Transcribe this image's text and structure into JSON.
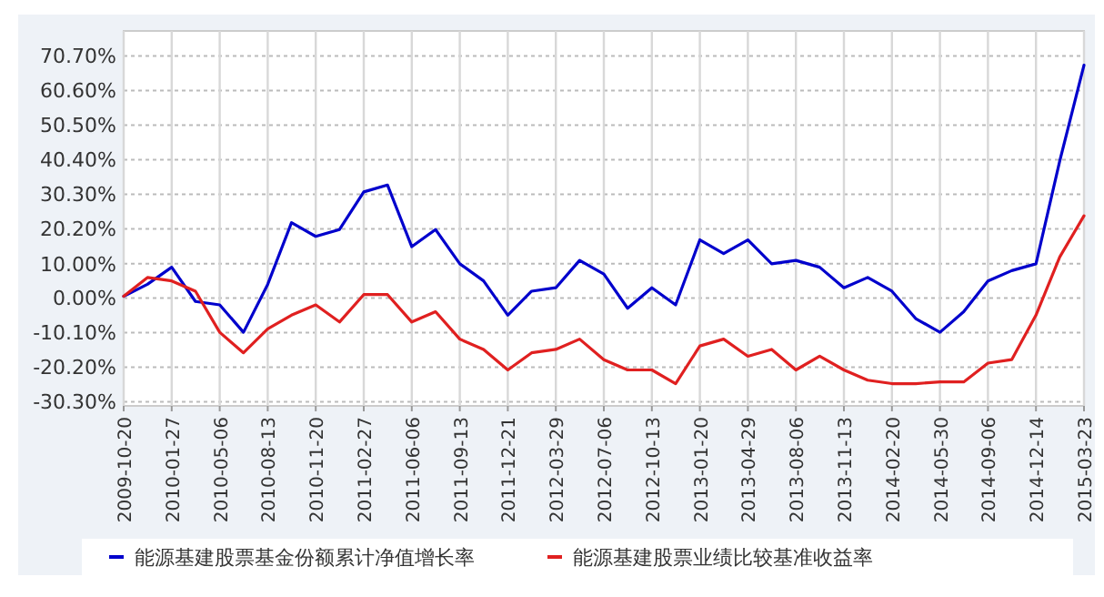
{
  "chart_data": {
    "type": "line",
    "x": [
      "2009-10-20",
      "2009-12-08",
      "2010-01-27",
      "2010-03-17",
      "2010-05-06",
      "2010-06-24",
      "2010-08-13",
      "2010-10-01",
      "2010-11-20",
      "2011-01-08",
      "2011-02-27",
      "2011-04-17",
      "2011-06-06",
      "2011-07-25",
      "2011-09-13",
      "2011-11-01",
      "2011-12-21",
      "2012-02-08",
      "2012-03-29",
      "2012-05-17",
      "2012-07-06",
      "2012-08-24",
      "2012-10-13",
      "2012-12-01",
      "2013-01-20",
      "2013-03-10",
      "2013-04-29",
      "2013-06-17",
      "2013-08-06",
      "2013-09-24",
      "2013-11-13",
      "2014-01-01",
      "2014-02-20",
      "2014-04-10",
      "2014-05-30",
      "2014-07-18",
      "2014-09-06",
      "2014-10-25",
      "2014-12-14",
      "2015-02-01",
      "2015-03-23"
    ],
    "series": [
      {
        "name": "能源基建股票基金份额累计净值增长率",
        "color": "#0000cc",
        "values": [
          0.5,
          4,
          9,
          -1,
          -2,
          -10,
          4,
          22,
          18,
          20,
          31,
          33,
          15,
          20,
          10,
          5,
          -5,
          2,
          3,
          11,
          7,
          -3,
          3,
          -2,
          17,
          13,
          17,
          10,
          11,
          9,
          3,
          6,
          2,
          -6,
          -10,
          -4,
          5,
          8,
          10,
          40,
          68
        ]
      },
      {
        "name": "能源基建股票业绩比较基准收益率",
        "color": "#e02020",
        "values": [
          0.5,
          6,
          5,
          2,
          -10,
          -16,
          -9,
          -5,
          -2,
          -7,
          1,
          1,
          -7,
          -4,
          -12,
          -15,
          -21,
          -16,
          -15,
          -12,
          -18,
          -21,
          -21,
          -25,
          -14,
          -12,
          -17,
          -15,
          -21,
          -17,
          -21,
          -24,
          -25,
          -25,
          -24.5,
          -24.5,
          -19,
          -18,
          -5,
          12,
          24
        ]
      }
    ],
    "xlim": [
      "2009-10-20",
      "2015-03-23"
    ],
    "xticks": [
      "2009-10-20",
      "2010-01-27",
      "2010-05-06",
      "2010-08-13",
      "2010-11-20",
      "2011-02-27",
      "2011-06-06",
      "2011-09-13",
      "2011-12-21",
      "2012-03-29",
      "2012-07-06",
      "2012-10-13",
      "2013-01-20",
      "2013-04-29",
      "2013-08-06",
      "2013-11-13",
      "2014-02-20",
      "2014-05-30",
      "2014-09-06",
      "2014-12-14",
      "2015-03-23"
    ],
    "ylim": [
      -31.5,
      78
    ],
    "yticks": [
      {
        "value": -30.3,
        "label": "-30.30%"
      },
      {
        "value": -20.2,
        "label": "-20.20%"
      },
      {
        "value": -10.1,
        "label": "-10.10%"
      },
      {
        "value": 0,
        "label": "0.00%"
      },
      {
        "value": 10,
        "label": "10.00%"
      },
      {
        "value": 20.2,
        "label": "20.20%"
      },
      {
        "value": 30.3,
        "label": "30.30%"
      },
      {
        "value": 40.4,
        "label": "40.40%"
      },
      {
        "value": 50.5,
        "label": "50.50%"
      },
      {
        "value": 60.6,
        "label": "60.60%"
      },
      {
        "value": 70.7,
        "label": "70.70%"
      }
    ],
    "grid": true,
    "legend": "bottom",
    "marker": "none",
    "line_style": "solid"
  }
}
